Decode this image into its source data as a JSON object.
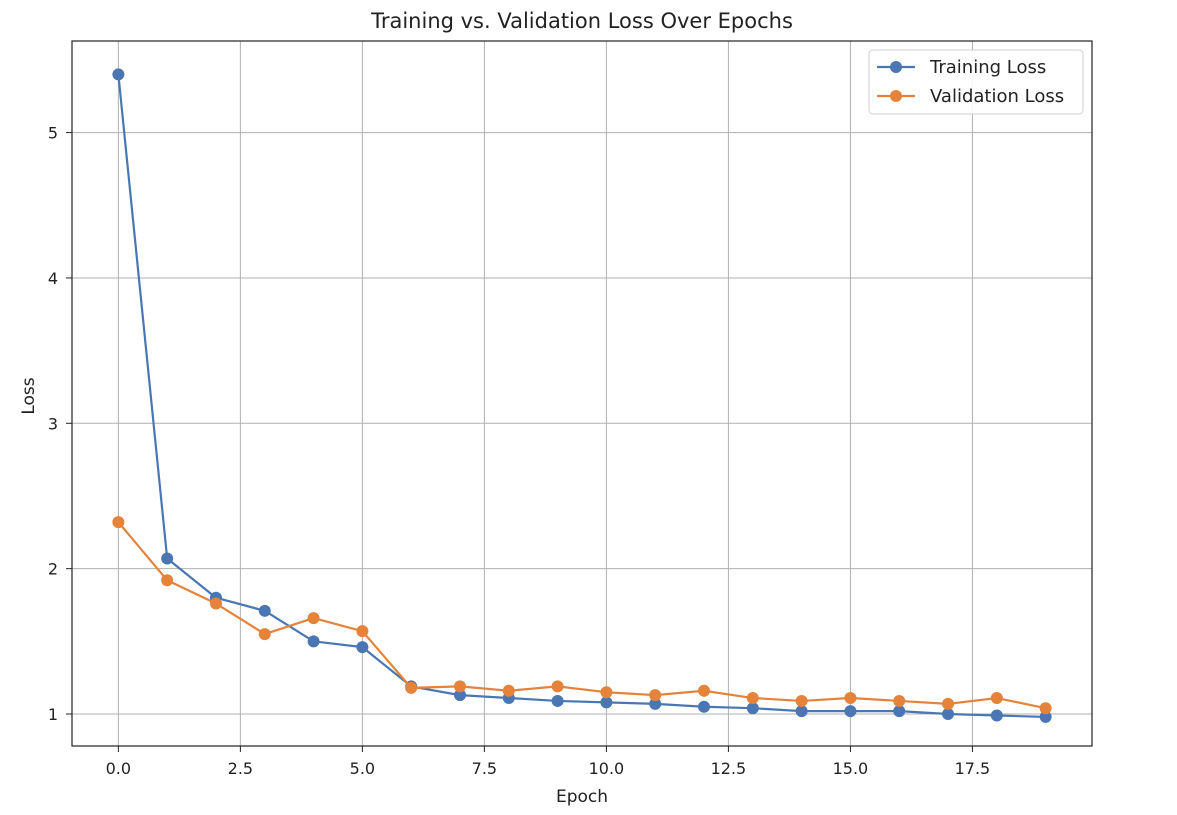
{
  "chart_data": {
    "type": "line",
    "title": "Training vs. Validation Loss Over Epochs",
    "xlabel": "Epoch",
    "ylabel": "Loss",
    "x": [
      0,
      1,
      2,
      3,
      4,
      5,
      6,
      7,
      8,
      9,
      10,
      11,
      12,
      13,
      14,
      15,
      16,
      17,
      18,
      19
    ],
    "xlim": [
      -0.95,
      19.95
    ],
    "ylim": [
      0.78,
      5.63
    ],
    "xticks": [
      0,
      2.5,
      5,
      7.5,
      10,
      12.5,
      15,
      17.5
    ],
    "xtick_labels": [
      "0.0",
      "2.5",
      "5.0",
      "7.5",
      "10.0",
      "12.5",
      "15.0",
      "17.5"
    ],
    "yticks": [
      1,
      2,
      3,
      4,
      5
    ],
    "ytick_labels": [
      "1",
      "2",
      "3",
      "4",
      "5"
    ],
    "grid": true,
    "legend_position": "top-right",
    "series": [
      {
        "name": "Training Loss",
        "color": "#4a77b4",
        "marker": "circle",
        "values": [
          5.4,
          2.07,
          1.8,
          1.71,
          1.5,
          1.46,
          1.19,
          1.13,
          1.11,
          1.09,
          1.08,
          1.07,
          1.05,
          1.04,
          1.02,
          1.02,
          1.02,
          1.0,
          0.99,
          0.98
        ]
      },
      {
        "name": "Validation Loss",
        "color": "#e5833a",
        "marker": "circle",
        "values": [
          2.32,
          1.92,
          1.76,
          1.55,
          1.66,
          1.57,
          1.18,
          1.19,
          1.16,
          1.19,
          1.15,
          1.13,
          1.16,
          1.11,
          1.09,
          1.11,
          1.09,
          1.07,
          1.11,
          1.04
        ]
      }
    ]
  }
}
